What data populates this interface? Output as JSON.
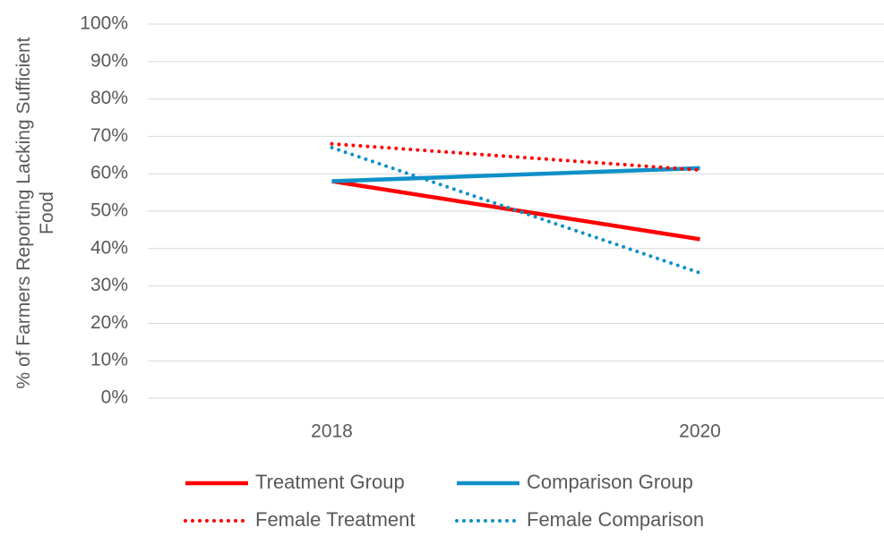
{
  "chart_data": {
    "type": "line",
    "y_axis_label": "% of Farmers Reporting Lacking Sufficient Food",
    "categories": [
      "2018",
      "2020"
    ],
    "series": [
      {
        "name": "Treatment Group",
        "color": "#ff0000",
        "dash": "solid",
        "values": [
          58,
          42.5
        ]
      },
      {
        "name": "Comparison Group",
        "color": "#1090c8",
        "dash": "solid",
        "values": [
          58,
          61.5
        ]
      },
      {
        "name": "Female Treatment",
        "color": "#ff0000",
        "dash": "dotted",
        "values": [
          68,
          61
        ]
      },
      {
        "name": "Female Comparison",
        "color": "#1090c8",
        "dash": "dotted",
        "values": [
          67,
          33.5
        ]
      }
    ],
    "ylim": [
      0,
      100
    ],
    "yticks": [
      {
        "value": 0,
        "label": "0%"
      },
      {
        "value": 10,
        "label": "10%"
      },
      {
        "value": 20,
        "label": "20%"
      },
      {
        "value": 30,
        "label": "30%"
      },
      {
        "value": 40,
        "label": "40%"
      },
      {
        "value": 50,
        "label": "50%"
      },
      {
        "value": 60,
        "label": "60%"
      },
      {
        "value": 70,
        "label": "70%"
      },
      {
        "value": 80,
        "label": "80%"
      },
      {
        "value": 90,
        "label": "90%"
      },
      {
        "value": 100,
        "label": "100%"
      }
    ],
    "grid": true
  }
}
